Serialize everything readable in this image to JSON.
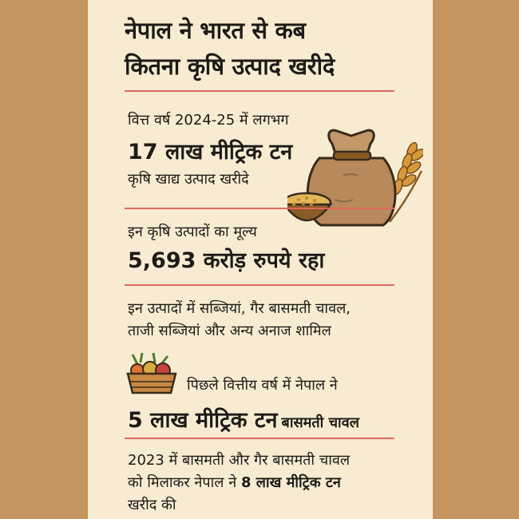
{
  "title": {
    "line1": "नेपाल ने भारत से कब",
    "line2": "कितना कृषि उत्पाद खरीदे"
  },
  "section1": {
    "intro": "वित्त वर्ष 2024-25 में लगभग",
    "highlight": "17 लाख मीट्रिक टन",
    "desc": "कृषि खाद्य उत्पाद खरीदे"
  },
  "section2": {
    "intro": "इन कृषि उत्पादों का मूल्य",
    "highlight": "5,693 करोड़ रुपये रहा"
  },
  "section3": {
    "line1": "इन उत्पादों में सब्जियां, गैर बासमती चावल,",
    "line2": "ताजी सब्जियां और अन्य अनाज शामिल"
  },
  "section4": {
    "intro": "पिछले वित्तीय वर्ष में नेपाल ने",
    "highlight": "5 लाख मीट्रिक टन",
    "suffix": "बासमती चावल"
  },
  "section5": {
    "line1": "2023 में बासमती और गैर बासमती चावल",
    "line2_prefix": "को मिलाकर नेपाल ने",
    "line2_highlight": "8 लाख मीट्रिक टन",
    "line3": "खरीद की"
  },
  "colors": {
    "background": "#c4955f",
    "card": "#f7ecd2",
    "divider": "#e1685c",
    "text": "#1d1a17"
  },
  "icons": [
    "grain-sack-icon",
    "grain-bowl-icon",
    "wheat-icon",
    "vegetable-basket-icon"
  ]
}
